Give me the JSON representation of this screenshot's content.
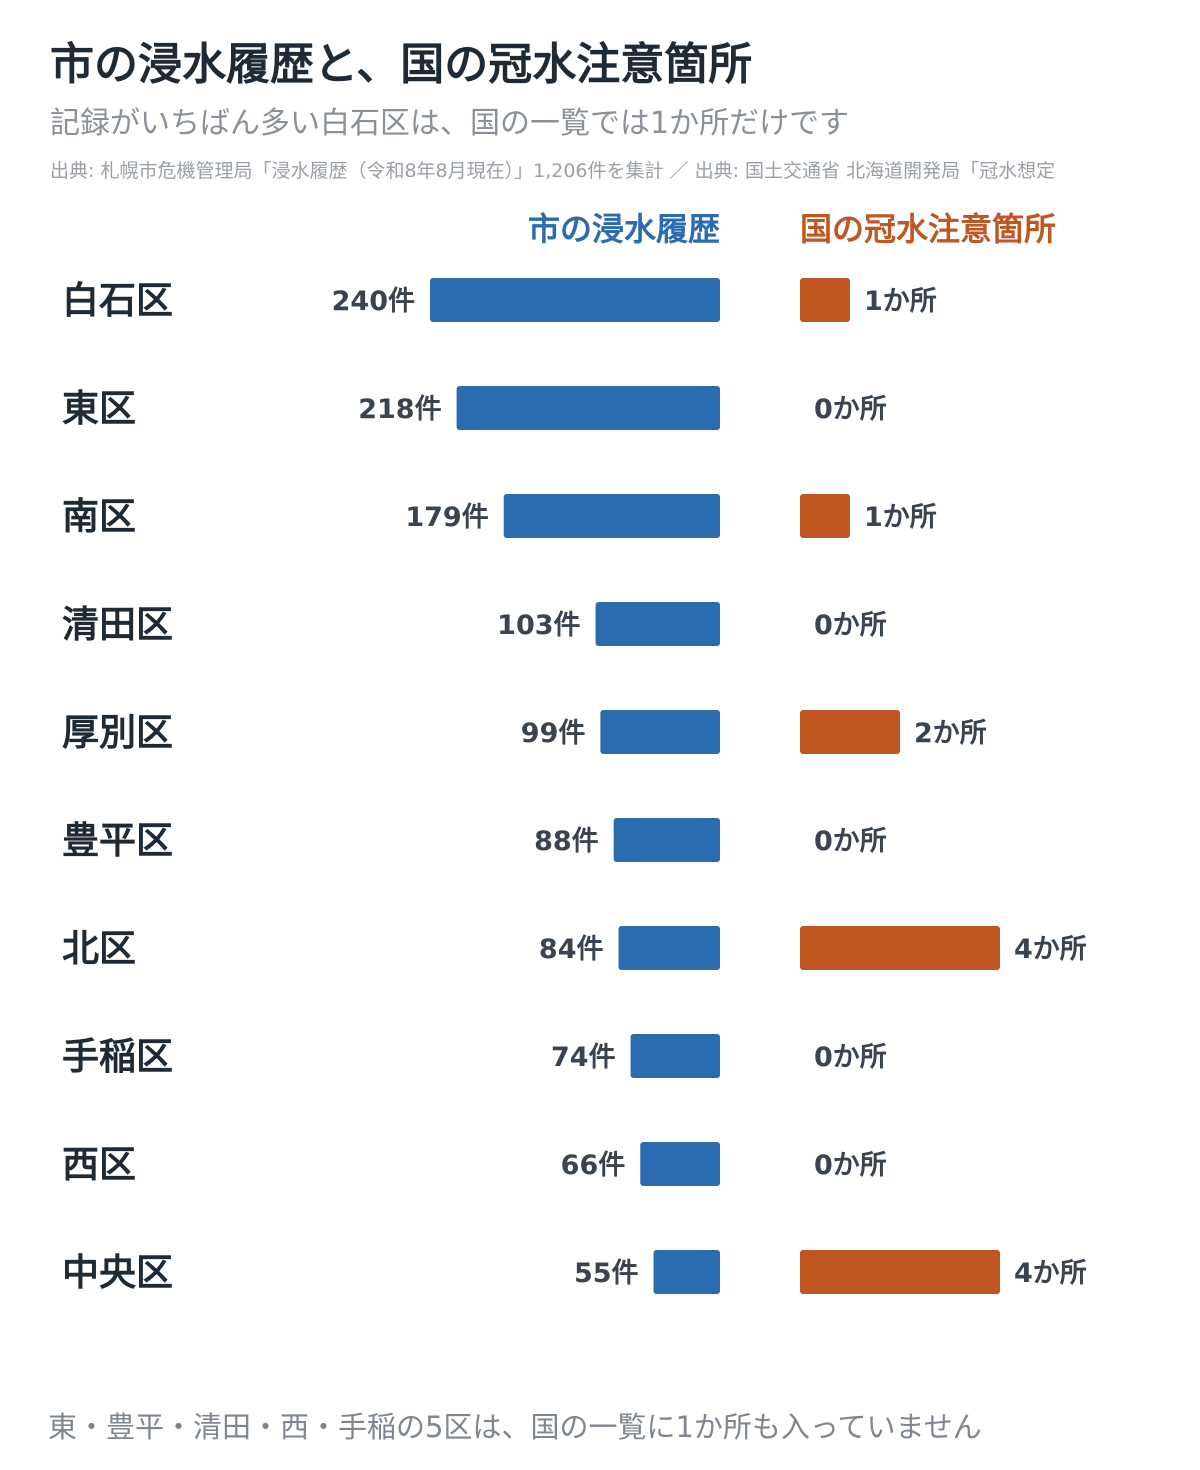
{
  "header": {
    "title": "市の浸水履歴と、国の冠水注意箇所",
    "subtitle": "記録がいちばん多い白石区は、国の一覧では1か所だけです",
    "source": "出典: 札幌市危機管理局「浸水履歴（令和8年8月現在）」1,206件を集計 ／ 出典: 国土交通省 北海道開発局「冠水想定"
  },
  "footnote": "東・豊平・清田・西・手稲の5区は、国の一覧に1か所も入っていません",
  "colors": {
    "city": "#2b6cb0",
    "national": "#c05621",
    "label": "#1f2a37",
    "value": "#3a4350"
  },
  "chart_data": {
    "type": "bar",
    "categories": [
      "白石区",
      "東区",
      "南区",
      "清田区",
      "厚別区",
      "豊平区",
      "北区",
      "手稲区",
      "西区",
      "中央区"
    ],
    "series": [
      {
        "name": "市の浸水履歴",
        "unit": "件",
        "values": [
          240,
          218,
          179,
          103,
          99,
          88,
          84,
          74,
          66,
          55
        ]
      },
      {
        "name": "国の冠水注意箇所",
        "unit": "か所",
        "values": [
          1,
          0,
          1,
          0,
          2,
          0,
          4,
          0,
          0,
          4
        ]
      }
    ]
  }
}
